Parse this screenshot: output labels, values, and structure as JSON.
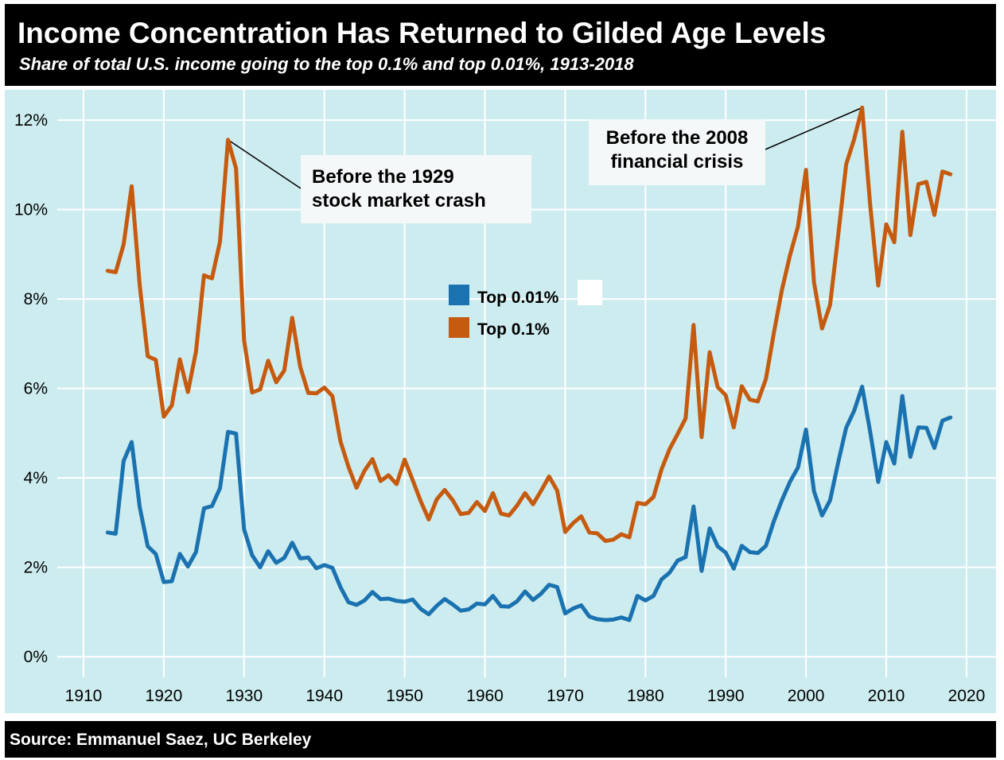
{
  "header": {
    "title": "Income Concentration Has Returned to Gilded Age Levels",
    "subtitle": "Share of total U.S. income going to the top 0.1% and top 0.01%, 1913-2018"
  },
  "footer": {
    "source": "Source: Emmanuel Saez, UC Berkeley"
  },
  "chart_data": {
    "type": "line",
    "title": "Income Concentration Has Returned to Gilded Age Levels",
    "subtitle": "Share of total U.S. income going to the top 0.1% and top 0.01%, 1913-2018",
    "xlim": [
      1905,
      2023
    ],
    "ylim": [
      -0.3,
      13
    ],
    "x_ticks": [
      1910,
      1920,
      1930,
      1940,
      1950,
      1960,
      1970,
      1980,
      1990,
      2000,
      2010,
      2020
    ],
    "x_tick_labels": [
      "1910",
      "1920",
      "1930",
      "1940",
      "1950",
      "1960",
      "1970",
      "1980",
      "1990",
      "2000",
      "2010",
      "2020"
    ],
    "y_ticks": [
      0,
      2,
      4,
      6,
      8,
      10,
      12
    ],
    "y_tick_labels": [
      "0%",
      "2%",
      "4%",
      "6%",
      "8%",
      "10%",
      "12%"
    ],
    "grid": true,
    "legend": {
      "placement": "center",
      "entries": [
        "Top 0.01%",
        "Top 0.1%"
      ]
    },
    "colors": {
      "top001": "#1b72b0",
      "top01": "#c65a0e",
      "background": "#cdecef",
      "grid": "#ffffff"
    },
    "x": [
      1913,
      1914,
      1915,
      1916,
      1917,
      1918,
      1919,
      1920,
      1921,
      1922,
      1923,
      1924,
      1925,
      1926,
      1927,
      1928,
      1929,
      1930,
      1931,
      1932,
      1933,
      1934,
      1935,
      1936,
      1937,
      1938,
      1939,
      1940,
      1941,
      1942,
      1943,
      1944,
      1945,
      1946,
      1947,
      1948,
      1949,
      1950,
      1951,
      1952,
      1953,
      1954,
      1955,
      1956,
      1957,
      1958,
      1959,
      1960,
      1961,
      1962,
      1963,
      1964,
      1965,
      1966,
      1967,
      1968,
      1969,
      1970,
      1971,
      1972,
      1973,
      1974,
      1975,
      1976,
      1977,
      1978,
      1979,
      1980,
      1981,
      1982,
      1983,
      1984,
      1985,
      1986,
      1987,
      1988,
      1989,
      1990,
      1991,
      1992,
      1993,
      1994,
      1995,
      1996,
      1997,
      1998,
      1999,
      2000,
      2001,
      2002,
      2003,
      2004,
      2005,
      2006,
      2007,
      2008,
      2009,
      2010,
      2011,
      2012,
      2013,
      2014,
      2015,
      2016,
      2017,
      2018
    ],
    "series": [
      {
        "name": "Top 0.01%",
        "values": [
          2.78,
          2.75,
          4.38,
          4.8,
          3.35,
          2.47,
          2.3,
          1.67,
          1.69,
          2.3,
          2.02,
          2.34,
          3.32,
          3.37,
          3.77,
          5.03,
          4.99,
          2.85,
          2.27,
          2.0,
          2.36,
          2.1,
          2.21,
          2.55,
          2.2,
          2.22,
          1.98,
          2.05,
          1.99,
          1.56,
          1.22,
          1.16,
          1.26,
          1.45,
          1.29,
          1.3,
          1.25,
          1.23,
          1.28,
          1.07,
          0.95,
          1.14,
          1.29,
          1.17,
          1.03,
          1.06,
          1.19,
          1.17,
          1.36,
          1.13,
          1.12,
          1.24,
          1.46,
          1.27,
          1.41,
          1.61,
          1.56,
          0.97,
          1.08,
          1.15,
          0.9,
          0.84,
          0.82,
          0.83,
          0.88,
          0.82,
          1.36,
          1.26,
          1.36,
          1.73,
          1.88,
          2.15,
          2.23,
          3.36,
          1.92,
          2.87,
          2.47,
          2.33,
          1.97,
          2.48,
          2.34,
          2.32,
          2.48,
          3.03,
          3.5,
          3.91,
          4.23,
          5.08,
          3.7,
          3.16,
          3.5,
          4.34,
          5.12,
          5.5,
          6.04,
          5.03,
          3.91,
          4.8,
          4.32,
          5.83,
          4.47,
          5.13,
          5.12,
          4.67,
          5.28,
          5.35
        ]
      },
      {
        "name": "Top 0.1%",
        "values": [
          8.63,
          8.6,
          9.22,
          10.52,
          8.31,
          6.72,
          6.64,
          5.37,
          5.62,
          6.65,
          5.92,
          6.82,
          8.53,
          8.46,
          9.28,
          11.56,
          10.92,
          7.08,
          5.91,
          5.98,
          6.62,
          6.14,
          6.4,
          7.58,
          6.48,
          5.9,
          5.89,
          6.02,
          5.83,
          4.82,
          4.25,
          3.78,
          4.16,
          4.42,
          3.93,
          4.06,
          3.86,
          4.41,
          3.95,
          3.48,
          3.07,
          3.52,
          3.73,
          3.5,
          3.19,
          3.22,
          3.46,
          3.26,
          3.66,
          3.2,
          3.16,
          3.38,
          3.66,
          3.41,
          3.71,
          4.03,
          3.72,
          2.79,
          2.99,
          3.14,
          2.78,
          2.76,
          2.59,
          2.62,
          2.74,
          2.67,
          3.44,
          3.41,
          3.57,
          4.19,
          4.64,
          4.98,
          5.33,
          7.42,
          4.91,
          6.81,
          6.03,
          5.85,
          5.13,
          6.05,
          5.75,
          5.71,
          6.21,
          7.24,
          8.2,
          8.97,
          9.62,
          10.89,
          8.37,
          7.34,
          7.87,
          9.41,
          11.01,
          11.57,
          12.28,
          10.1,
          8.3,
          9.67,
          9.27,
          11.74,
          9.43,
          10.57,
          10.62,
          9.88,
          10.85,
          10.79
        ]
      }
    ],
    "annotations": [
      {
        "text_lines": [
          "Before the 1929",
          "stock market crash"
        ],
        "x": 1928,
        "y": 11.56
      },
      {
        "text_lines": [
          "Before the 2008",
          "financial crisis"
        ],
        "x": 2007,
        "y": 12.28
      }
    ]
  }
}
